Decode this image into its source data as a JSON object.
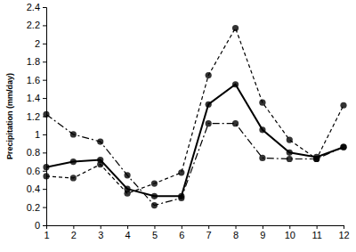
{
  "chart_data": {
    "type": "line",
    "ylabel": "Precipitation (mm/day)",
    "x": [
      1,
      2,
      3,
      4,
      5,
      6,
      7,
      8,
      9,
      10,
      11,
      12
    ],
    "xlim": [
      1,
      12
    ],
    "xticks": [
      1,
      2,
      3,
      4,
      5,
      6,
      7,
      8,
      9,
      10,
      11,
      12
    ],
    "ylim": [
      0,
      2.4
    ],
    "yticks": [
      0,
      0.2,
      0.4,
      0.6,
      0.8,
      1,
      1.2,
      1.4,
      1.6,
      1.8,
      2,
      2.2,
      2.4
    ],
    "grid": false,
    "series": [
      {
        "color": "#000000",
        "line_style": "solid",
        "marker": "circle",
        "values": [
          0.64,
          0.7,
          0.72,
          0.4,
          0.32,
          0.32,
          1.33,
          1.55,
          1.05,
          0.8,
          0.75,
          0.86
        ]
      },
      {
        "color": "#000000",
        "line_style": "dashed",
        "marker": "circle",
        "values": [
          0.54,
          0.52,
          0.67,
          0.35,
          0.46,
          0.58,
          1.65,
          2.17,
          1.35,
          0.94,
          0.73,
          1.32
        ]
      },
      {
        "color": "#000000",
        "line_style": "dashdot",
        "marker": "circle",
        "values": [
          1.22,
          1.0,
          0.92,
          0.55,
          0.22,
          0.3,
          1.12,
          1.12,
          0.74,
          0.73,
          0.73,
          0.86
        ]
      }
    ]
  }
}
